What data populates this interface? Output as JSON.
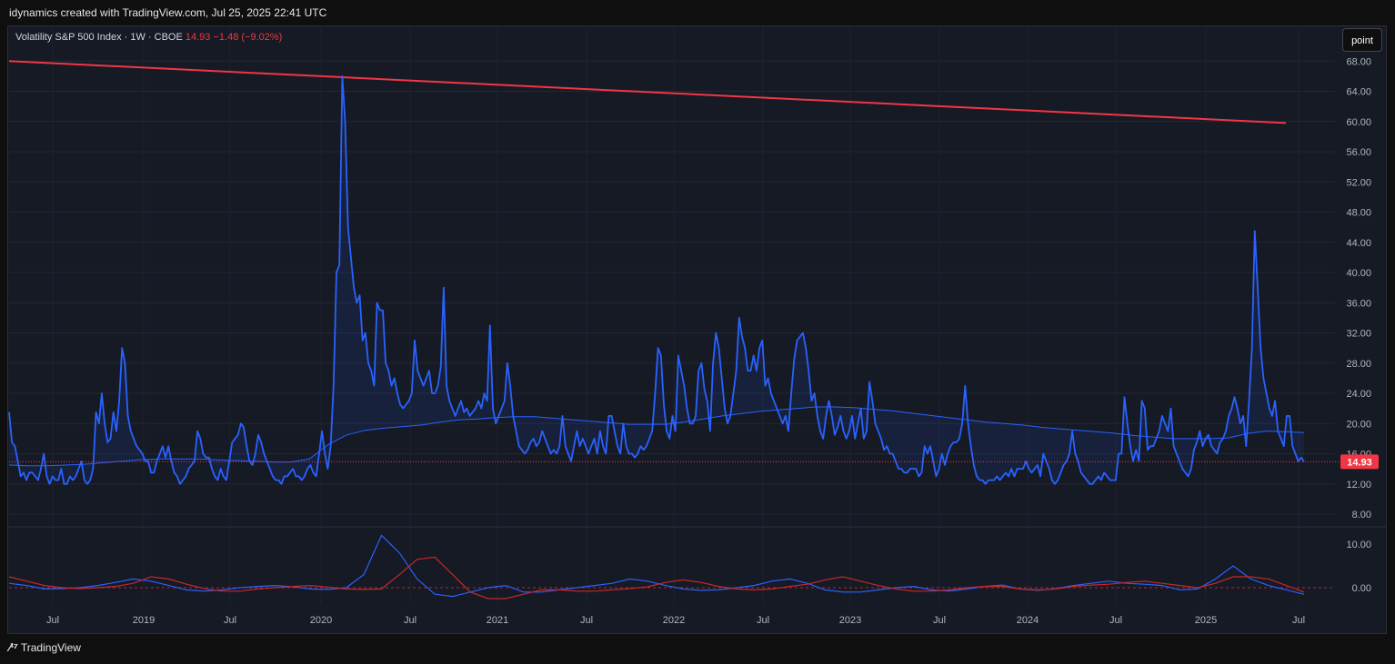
{
  "header": {
    "text": "idynamics created with TradingView.com, Jul 25, 2025 22:41 UTC"
  },
  "legend": {
    "symbol_text": "Volatility S&P 500 Index · 1W · CBOE",
    "last": "14.93",
    "change": "−1.48 (−9.02%)",
    "change_color": "#f23645"
  },
  "mode_button": {
    "label": "point"
  },
  "price_badge": {
    "value": "14.93",
    "color": "#f23645"
  },
  "footer": {
    "brand": "TradingView",
    "logo_icon": "tradingview-logo-icon"
  },
  "colors": {
    "series": "#2962ff",
    "trendline": "#f23645",
    "ma": "#2962ff",
    "osc_red": "#c62828",
    "osc_blue": "#2962ff"
  },
  "chart_data": {
    "type": "line",
    "x_tick_labels": [
      "Jul",
      "2019",
      "Jul",
      "2020",
      "Jul",
      "2021",
      "Jul",
      "2022",
      "Jul",
      "2023",
      "Jul",
      "2024",
      "Jul",
      "2025",
      "Jul"
    ],
    "y_tick_labels": [
      "8.00",
      "12.00",
      "16.00",
      "20.00",
      "24.00",
      "28.00",
      "32.00",
      "36.00",
      "40.00",
      "44.00",
      "48.00",
      "52.00",
      "56.00",
      "60.00",
      "64.00",
      "68.00"
    ],
    "y_ticks": [
      8,
      12,
      16,
      20,
      24,
      28,
      32,
      36,
      40,
      44,
      48,
      52,
      56,
      60,
      64,
      68
    ],
    "ylim": [
      4,
      72
    ],
    "oscillator_tick_labels": [
      "0.00",
      "10.00"
    ],
    "oscillator_ticks": [
      0,
      10
    ],
    "grid": true,
    "last_value": 14.93,
    "trendline": {
      "start": 68.0,
      "end": 59.8
    },
    "series": [
      {
        "name": "VIX",
        "x_range": [
          "2018-04",
          "2025-07"
        ],
        "values": [
          21.5,
          17.5,
          17,
          15,
          13,
          13.5,
          12.5,
          13.5,
          13.5,
          13,
          12.5,
          14,
          16,
          13,
          12,
          13,
          12.5,
          12.5,
          14,
          12,
          12,
          13,
          12.5,
          13,
          14,
          15,
          12.5,
          12,
          12.5,
          14,
          21.5,
          20,
          24,
          20,
          17.5,
          18,
          21.5,
          19,
          23,
          30,
          28,
          21,
          19,
          18,
          17,
          16.5,
          16,
          15,
          15,
          13.5,
          13.5,
          15,
          16,
          17,
          15.5,
          17,
          15,
          13.5,
          13,
          12,
          12.5,
          13,
          14,
          14.5,
          15,
          19,
          18,
          16,
          15.5,
          15.5,
          14,
          13,
          12.5,
          14,
          13,
          12.5,
          15,
          17.5,
          18,
          18.5,
          20,
          19.5,
          17,
          15,
          14.5,
          16,
          18.5,
          17.5,
          16,
          15,
          14,
          13,
          12.5,
          12.5,
          12,
          13,
          13,
          13.5,
          14,
          13,
          13,
          12.5,
          13,
          14,
          14.5,
          13.5,
          13,
          16,
          19,
          16,
          14,
          17,
          25,
          40,
          41,
          66,
          60,
          46,
          42,
          38,
          36,
          37,
          31,
          32,
          28,
          27,
          25,
          36,
          35,
          35,
          28,
          27,
          25,
          26,
          24,
          22.5,
          22,
          22.5,
          23,
          24,
          31,
          27,
          26,
          25,
          26,
          27,
          24,
          24,
          25,
          27.5,
          38,
          25,
          23,
          22,
          21,
          22,
          23,
          21.5,
          22,
          21,
          21.5,
          22,
          23,
          22,
          24,
          23,
          33,
          22,
          20,
          21,
          22,
          23,
          28,
          25,
          21,
          19,
          17,
          16.5,
          16,
          16.5,
          17.5,
          18,
          17,
          17.5,
          19,
          18,
          17,
          16,
          16.5,
          16,
          17,
          21,
          17,
          16,
          15,
          17,
          19,
          17,
          18,
          17,
          16,
          17,
          18,
          16,
          19,
          17,
          16,
          21,
          21,
          19,
          17,
          16,
          20,
          17,
          16,
          16,
          15.5,
          16,
          17,
          16.5,
          17,
          18,
          19,
          24,
          30,
          29,
          22.5,
          19,
          18,
          21,
          19,
          29,
          27,
          25,
          22,
          20,
          20,
          21,
          27,
          28,
          24.5,
          23,
          19,
          28,
          32,
          30,
          26,
          22,
          20,
          21,
          24,
          27,
          34,
          31.5,
          30,
          27,
          27,
          29,
          27,
          30,
          31,
          25,
          26,
          24,
          23,
          22,
          21,
          20,
          21,
          19,
          24,
          28.5,
          31,
          31.5,
          32,
          30,
          27,
          23,
          24,
          21,
          19,
          18,
          21,
          23,
          21,
          18.5,
          19.5,
          21,
          19,
          18,
          19,
          21,
          18,
          20,
          22,
          18,
          19,
          25.5,
          23,
          20,
          19,
          18,
          16.5,
          17,
          16,
          16,
          15,
          14,
          14,
          13.5,
          13.5,
          14,
          14,
          14,
          13,
          13.5,
          17,
          16,
          17,
          15,
          13,
          14,
          16,
          14.5,
          16,
          17,
          17.5,
          17.5,
          18,
          20,
          25,
          20,
          17,
          14.5,
          13,
          12.5,
          12.5,
          12,
          12.5,
          12.5,
          12.5,
          13,
          12.5,
          13,
          13.5,
          13,
          14,
          13,
          14,
          14,
          14,
          15,
          14,
          13.5,
          14,
          14.5,
          13,
          16,
          15,
          14,
          12.5,
          12,
          12.5,
          13.5,
          14.5,
          15,
          16,
          19,
          16,
          15,
          13.5,
          13,
          12.5,
          12,
          12,
          12.5,
          13,
          12.5,
          13.5,
          13,
          12.5,
          12.5,
          12.5,
          16,
          16,
          23.5,
          20,
          17,
          15,
          16.5,
          15,
          23,
          22,
          16.5,
          17,
          17,
          18,
          19,
          21,
          20,
          19,
          22,
          17,
          16,
          15,
          14,
          13.5,
          13,
          14,
          16.5,
          17.5,
          19,
          17,
          18,
          18.5,
          17,
          16.5,
          16,
          17.5,
          18,
          19,
          21,
          22,
          23.5,
          22,
          20,
          21,
          17,
          23,
          30,
          45.5,
          38,
          30,
          26,
          24,
          22,
          21,
          23,
          19,
          18,
          17,
          21,
          21,
          17,
          16,
          15,
          15.5,
          14.93
        ]
      },
      {
        "name": "MA",
        "x_range": [
          "2018-04",
          "2025-07"
        ],
        "values": [
          14.5,
          14.4,
          14.4,
          14.5,
          14.6,
          14.8,
          15.0,
          15.2,
          15.3,
          15.3,
          15.3,
          15.2,
          15.1,
          15.0,
          14.9,
          14.9,
          15.3,
          17.2,
          18.5,
          19.1,
          19.4,
          19.6,
          19.8,
          20.2,
          20.5,
          20.6,
          20.8,
          20.9,
          20.9,
          20.7,
          20.5,
          20.3,
          20.1,
          19.9,
          19.9,
          19.9,
          20.2,
          20.6,
          21.0,
          21.3,
          21.6,
          21.8,
          22.0,
          22.2,
          22.2,
          22.1,
          21.9,
          21.7,
          21.4,
          21.1,
          20.8,
          20.5,
          20.2,
          20.0,
          19.8,
          19.5,
          19.3,
          19.1,
          18.9,
          18.7,
          18.4,
          18.2,
          18.0,
          18.0,
          18.0,
          18.1,
          18.7,
          19.0,
          18.9,
          18.8
        ]
      }
    ],
    "oscillator": {
      "series": [
        {
          "values": [
            1,
            0.5,
            -0.3,
            -0.2,
            0,
            0.5,
            1.2,
            2,
            1.5,
            0.5,
            -0.5,
            -0.8,
            -0.5,
            0,
            0.3,
            0.5,
            0.2,
            -0.3,
            -0.4,
            0,
            3,
            12,
            8,
            2,
            -1.5,
            -2,
            -1,
            0,
            0.5,
            -1,
            -1,
            -0.5,
            0,
            0.5,
            1,
            2,
            1.5,
            0.5,
            -0.3,
            -0.6,
            -0.5,
            0,
            0.5,
            1.5,
            2,
            1,
            -0.5,
            -1,
            -1,
            -0.5,
            0,
            0.3,
            -0.5,
            -0.8,
            -0.3,
            0.3,
            0.6,
            -0.3,
            -0.6,
            -0.2,
            0.5,
            1,
            1.5,
            1,
            0.8,
            0.5,
            -0.5,
            -0.3,
            2,
            5,
            2,
            0.5,
            -0.5,
            -1.5
          ]
        },
        {
          "values": [
            2.5,
            1.5,
            0.5,
            0,
            -0.2,
            0,
            0.3,
            1,
            2.5,
            2,
            0.8,
            -0.2,
            -0.8,
            -0.8,
            -0.3,
            0,
            0.3,
            0.5,
            0.1,
            -0.3,
            -0.4,
            -0.3,
            3,
            6.5,
            7,
            3,
            -1,
            -2.5,
            -2.5,
            -1.5,
            -0.5,
            -0.5,
            -0.8,
            -0.8,
            -0.5,
            -0.2,
            0.2,
            1.2,
            1.8,
            1.2,
            0.3,
            -0.3,
            -0.5,
            -0.3,
            0.3,
            0.8,
            1.8,
            2.5,
            1.5,
            0.5,
            -0.3,
            -0.8,
            -0.8,
            -0.5,
            0,
            0.3,
            0.3,
            -0.3,
            -0.5,
            -0.3,
            0.3,
            0.6,
            0.8,
            1.2,
            1.5,
            1,
            0.5,
            0,
            1,
            2.5,
            2.5,
            2,
            0.5,
            -1
          ]
        }
      ]
    }
  }
}
